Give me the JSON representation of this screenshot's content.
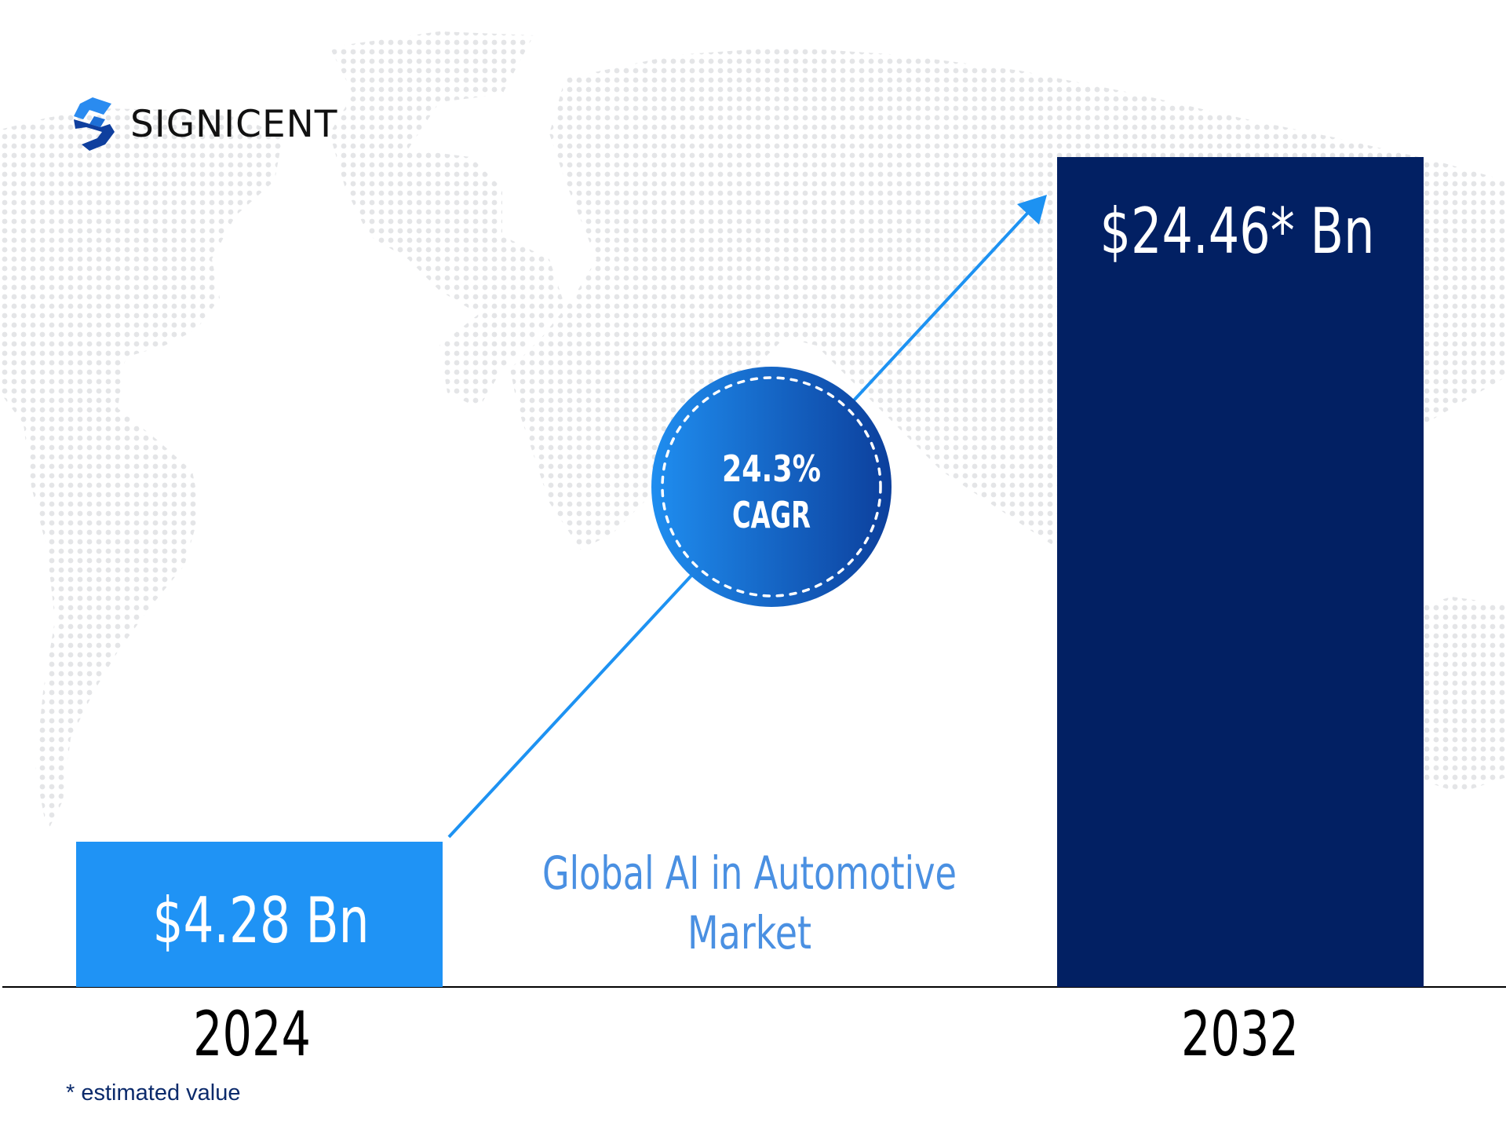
{
  "brand": {
    "name": "SIGNICENT",
    "logo_icon": "signicent-s-icon",
    "colors": {
      "light_blue": "#1f93f5",
      "navy": "#022063",
      "mid_blue": "#1b5fc7"
    }
  },
  "chart_data": {
    "type": "bar",
    "title": "Global AI in Automotive Market",
    "title_lines": [
      "Global AI in Automotive",
      "Market"
    ],
    "categories": [
      "2024",
      "2032"
    ],
    "values": [
      4.28,
      24.46
    ],
    "value_labels": [
      "$4.28 Bn",
      "$24.46* Bn"
    ],
    "unit": "USD billion",
    "bar_colors": [
      "#1f93f5",
      "#022063"
    ],
    "annotation": {
      "value_label": "24.3%",
      "sub_label": "CAGR"
    },
    "gridlines": false,
    "legend": "none"
  },
  "footnote": "* estimated value"
}
